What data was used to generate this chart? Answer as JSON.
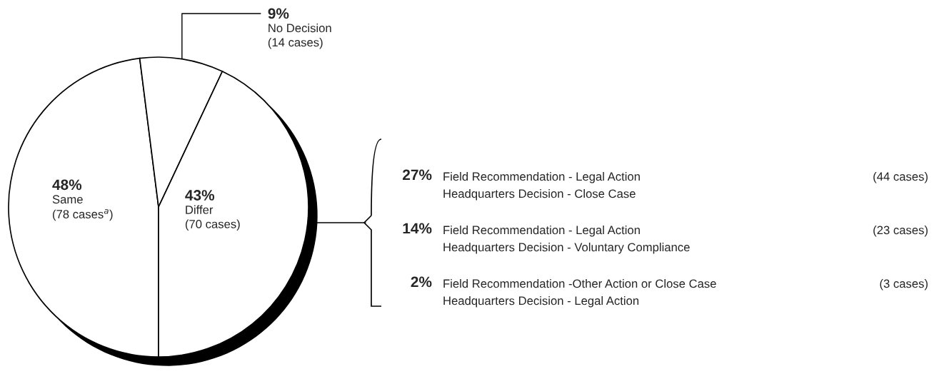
{
  "chart_data": {
    "type": "pie",
    "categories": [
      "Same",
      "No Decision",
      "Differ"
    ],
    "values": [
      48,
      9,
      43
    ],
    "colors": [
      "#ffffff",
      "#ffffff",
      "#ffffff"
    ],
    "value_labels": [
      "48%",
      "9%",
      "43%"
    ],
    "annotations": [
      {
        "text": "(78 cases$^{a}$)",
        "x": "Same"
      },
      {
        "text": "(14 cases)",
        "x": "No Decision"
      },
      {
        "text": "(70 cases)",
        "x": "Differ"
      },
      "27%",
      "Field Recommendation - Legal Action",
      "(44 cases)",
      "Headquarters Decision - Close Case",
      "14%",
      "Field Recommendation - Legal Action",
      "(23 cases)",
      "Headquarters Decision - Voluntary Compliance",
      "2%",
      "Field Recommendation -Other Action or Close Case",
      "(3 cases)",
      "Headquarters Decision - Legal Action"
    ]
  }
}
